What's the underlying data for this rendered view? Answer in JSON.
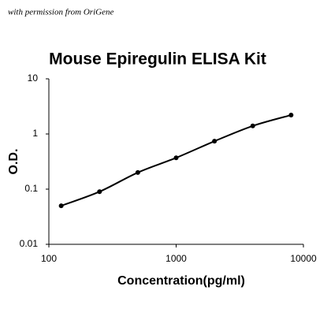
{
  "chart_data": {
    "type": "line",
    "annotation": "with permission from OriGene",
    "title": "Mouse Epiregulin ELISA Kit",
    "x_label": "Concentration(pg/ml)",
    "y_label": "O.D.",
    "x": [
      125,
      250,
      500,
      1000,
      2000,
      4000,
      8000
    ],
    "series": [
      {
        "color": "#000000",
        "values": [
          0.05,
          0.09,
          0.2,
          0.37,
          0.74,
          1.4,
          2.2
        ]
      }
    ],
    "xlim": [
      100,
      10000
    ],
    "xticks": [
      100,
      1000,
      10000
    ],
    "x_log": true,
    "ylim": [
      0.01,
      10
    ],
    "yticks": [
      0.01,
      0.1,
      1,
      10
    ],
    "y_log": true,
    "grid": false
  }
}
